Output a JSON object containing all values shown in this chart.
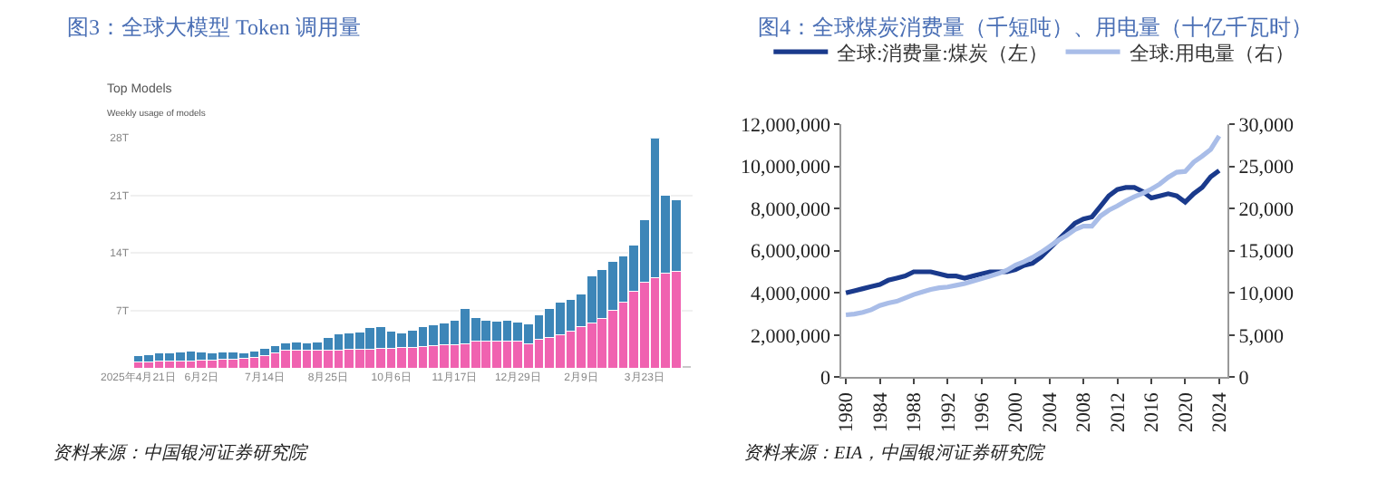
{
  "chart_data": [
    {
      "type": "bar",
      "title": "图3：全球大模型 Token 调用量",
      "subtitle": "Top Models",
      "stacked": true,
      "grid": "y",
      "legend": false,
      "annotations": [
        "Weekly usage of models",
        "资料来源：中国银河证券研究院"
      ],
      "x": [
        "2025-04-21",
        "2025-04-28",
        "2025-05-05",
        "2025-05-12",
        "2025-05-19",
        "2025-05-26",
        "2025-06-02",
        "2025-06-09",
        "2025-06-16",
        "2025-06-23",
        "2025-06-30",
        "2025-07-07",
        "2025-07-14",
        "2025-07-21",
        "2025-07-28",
        "2025-08-04",
        "2025-08-11",
        "2025-08-18",
        "2025-08-25",
        "2025-09-01",
        "2025-09-08",
        "2025-09-15",
        "2025-09-22",
        "2025-09-29",
        "2025-10-06",
        "2025-10-13",
        "2025-10-20",
        "2025-10-27",
        "2025-11-03",
        "2025-11-10",
        "2025-11-17",
        "2025-11-24",
        "2025-12-01",
        "2025-12-08",
        "2025-12-15",
        "2025-12-22",
        "2025-12-29",
        "2026-01-05",
        "2026-01-12",
        "2026-01-19",
        "2026-01-26",
        "2026-02-02",
        "2026-02-09",
        "2026-02-16",
        "2026-02-23",
        "2026-03-02",
        "2026-03-09",
        "2026-03-16",
        "2026-03-23",
        "2026-03-30",
        "2026-04-06",
        "2026-04-13",
        "2026-04-20"
      ],
      "series": [
        {
          "color": "#f062b0",
          "colors": [
            "#f062b0",
            "#f062b0",
            "#f062b0",
            "#f062b0",
            "#f062b0",
            "#f062b0",
            "#f062b0",
            "#f062b0",
            "#f062b0",
            "#f062b0",
            "#f062b0",
            "#f062b0",
            "#f062b0",
            "#f062b0",
            "#f062b0",
            "#f062b0",
            "#f062b0",
            "#f062b0",
            "#f062b0",
            "#f062b0",
            "#f062b0",
            "#f062b0",
            "#f062b0",
            "#f062b0",
            "#f062b0",
            "#f062b0",
            "#f062b0",
            "#f062b0",
            "#f062b0",
            "#f062b0",
            "#f062b0",
            "#f062b0",
            "#f062b0",
            "#f062b0",
            "#f062b0",
            "#f062b0",
            "#f062b0",
            "#f062b0",
            "#f062b0",
            "#f062b0",
            "#f062b0",
            "#f062b0",
            "#f062b0",
            "#f062b0",
            "#f062b0",
            "#f062b0",
            "#f062b0",
            "#f062b0",
            "#f062b0",
            "#f062b0",
            "#f062b0",
            "#f062b0",
            "#c8c8c8"
          ],
          "values": [
            0.7,
            0.7,
            0.8,
            0.8,
            0.9,
            0.9,
            1.0,
            1.0,
            1.1,
            1.1,
            1.2,
            1.3,
            1.5,
            1.8,
            2.2,
            2.2,
            2.2,
            2.2,
            2.2,
            2.2,
            2.3,
            2.3,
            2.3,
            2.4,
            2.4,
            2.5,
            2.5,
            2.6,
            2.7,
            2.8,
            2.8,
            2.9,
            3.3,
            3.3,
            3.3,
            3.3,
            3.3,
            3.0,
            3.5,
            3.7,
            4.0,
            4.5,
            5.0,
            5.5,
            6.0,
            7.0,
            8.0,
            9.3,
            10.5,
            11.0,
            11.5,
            11.8,
            0.3
          ]
        },
        {
          "color": "#3d86b8",
          "values": [
            0.8,
            0.9,
            1.0,
            1.1,
            1.1,
            1.2,
            1.0,
            0.9,
            0.9,
            0.9,
            0.7,
            0.8,
            0.9,
            0.9,
            0.9,
            1.0,
            0.9,
            1.0,
            1.5,
            2.0,
            2.0,
            2.1,
            2.6,
            2.6,
            2.1,
            1.8,
            2.1,
            2.4,
            2.6,
            2.7,
            3.0,
            4.3,
            2.8,
            2.5,
            2.4,
            2.5,
            2.3,
            2.4,
            3.0,
            3.6,
            4.0,
            3.9,
            4.0,
            5.7,
            6.0,
            6.0,
            5.6,
            5.7,
            7.5,
            17.0,
            9.5,
            8.7,
            null
          ]
        }
      ],
      "xlim": [
        "2025-04-16",
        "2026-04-24"
      ],
      "xticks": [
        {
          "value": "2025-04-21",
          "label": "2025年4月21日"
        },
        {
          "value": "2025-06-02",
          "label": "6月2日"
        },
        {
          "value": "2025-07-14",
          "label": "7月14日"
        },
        {
          "value": "2025-08-25",
          "label": "8月25日"
        },
        {
          "value": "2025-10-06",
          "label": "10月6日"
        },
        {
          "value": "2025-11-17",
          "label": "11月17日"
        },
        {
          "value": "2025-12-29",
          "label": "12月29日"
        },
        {
          "value": "2026-02-09",
          "label": "2月9日"
        },
        {
          "value": "2026-03-23",
          "label": "3月23日"
        }
      ],
      "ylim": [
        0,
        28
      ],
      "yticks": [
        {
          "value": 7,
          "label": "7T"
        },
        {
          "value": 14,
          "label": "14T"
        },
        {
          "value": 21,
          "label": "21T"
        },
        {
          "value": 28,
          "label": "28T"
        }
      ]
    },
    {
      "type": "line",
      "title": "图4：全球煤炭消费量（千短吨）、用电量（十亿千瓦时）",
      "legend": "top",
      "grid": false,
      "annotations": [
        "资料来源：EIA，中国银河证券研究院"
      ],
      "x": [
        1980,
        1981,
        1982,
        1983,
        1984,
        1985,
        1986,
        1987,
        1988,
        1989,
        1990,
        1991,
        1992,
        1993,
        1994,
        1995,
        1996,
        1997,
        1998,
        1999,
        2000,
        2001,
        2002,
        2003,
        2004,
        2005,
        2006,
        2007,
        2008,
        2009,
        2010,
        2011,
        2012,
        2013,
        2014,
        2015,
        2016,
        2017,
        2018,
        2019,
        2020,
        2021,
        2022,
        2023,
        2024
      ],
      "series": [
        {
          "name": "全球:消费量:煤炭（左）",
          "color": "#1a3a8c",
          "values": [
            4000000,
            4100000,
            4200000,
            4300000,
            4400000,
            4600000,
            4700000,
            4800000,
            5000000,
            5000000,
            5000000,
            4900000,
            4800000,
            4800000,
            4700000,
            4800000,
            4900000,
            5000000,
            5000000,
            5000000,
            5100000,
            5300000,
            5400000,
            5700000,
            6100000,
            6500000,
            6900000,
            7300000,
            7500000,
            7600000,
            8100000,
            8600000,
            8900000,
            9000000,
            9000000,
            8800000,
            8500000,
            8600000,
            8700000,
            8600000,
            8300000,
            8700000,
            9000000,
            9500000,
            9800000
          ]
        },
        {
          "name": "全球:用电量（右）",
          "color": "#a9bde8",
          "axis": "y2",
          "values": [
            7400,
            7500,
            7700,
            8000,
            8500,
            8800,
            9000,
            9400,
            9800,
            10100,
            10400,
            10600,
            10700,
            10900,
            11100,
            11400,
            11700,
            12000,
            12300,
            12700,
            13300,
            13700,
            14200,
            14800,
            15500,
            16200,
            16800,
            17500,
            17900,
            17900,
            19100,
            19800,
            20300,
            20900,
            21400,
            21800,
            22300,
            22900,
            23700,
            24300,
            24400,
            25500,
            26200,
            27000,
            28600
          ]
        }
      ],
      "xlim": [
        1979.5,
        2025
      ],
      "xticks": [
        1980,
        1984,
        1988,
        1992,
        1996,
        2000,
        2004,
        2008,
        2012,
        2016,
        2020,
        2024
      ],
      "ylim": [
        0,
        12000000
      ],
      "yticks": [
        {
          "value": 0,
          "label": "0"
        },
        {
          "value": 2000000,
          "label": "2,000,000"
        },
        {
          "value": 4000000,
          "label": "4,000,000"
        },
        {
          "value": 6000000,
          "label": "6,000,000"
        },
        {
          "value": 8000000,
          "label": "8,000,000"
        },
        {
          "value": 10000000,
          "label": "10,000,000"
        },
        {
          "value": 12000000,
          "label": "12,000,000"
        }
      ],
      "y2lim": [
        0,
        30000
      ],
      "y2ticks": [
        {
          "value": 0,
          "label": "0"
        },
        {
          "value": 5000,
          "label": "5,000"
        },
        {
          "value": 10000,
          "label": "10,000"
        },
        {
          "value": 15000,
          "label": "15,000"
        },
        {
          "value": 20000,
          "label": "20,000"
        },
        {
          "value": 25000,
          "label": "25,000"
        },
        {
          "value": 30000,
          "label": "30,000"
        }
      ]
    }
  ]
}
